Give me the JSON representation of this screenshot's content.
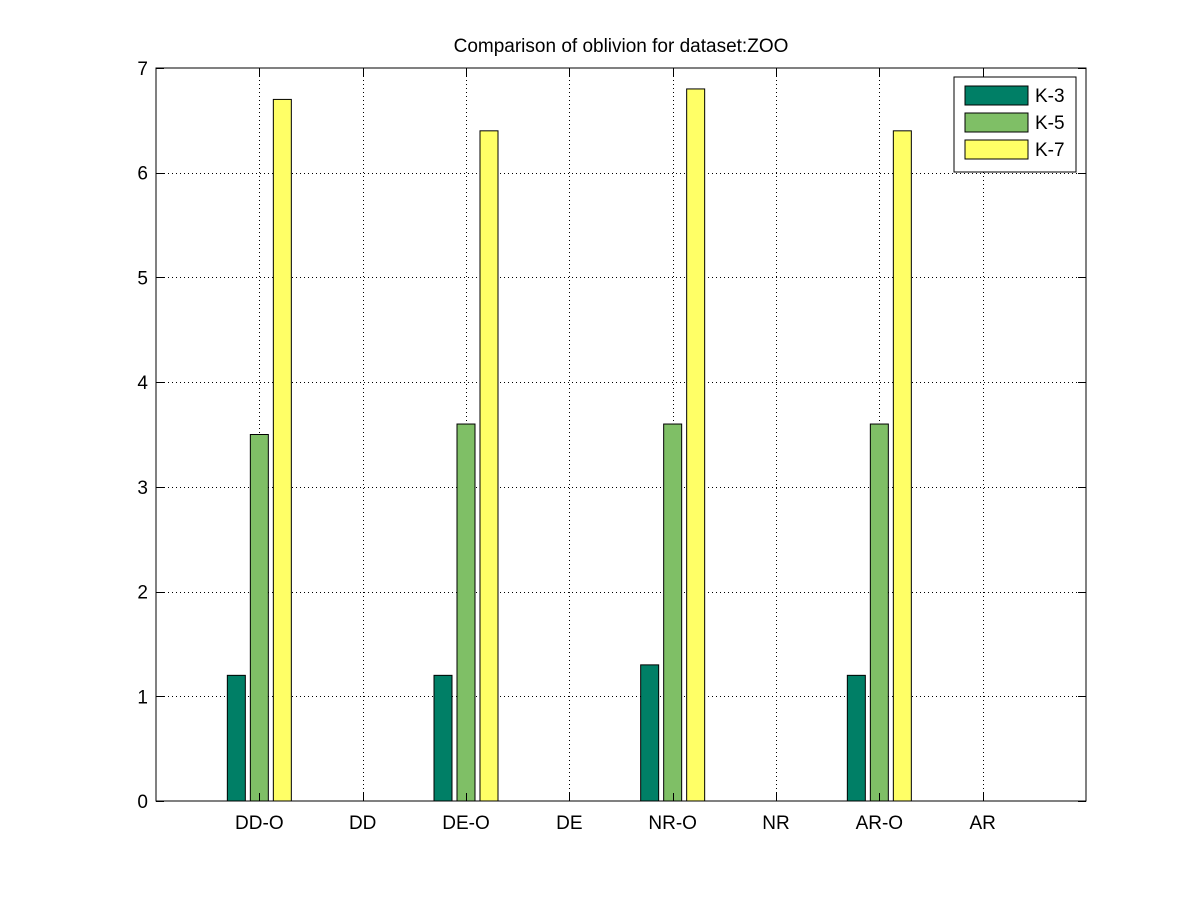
{
  "chart_data": {
    "type": "bar",
    "title": "Comparison of oblivion for dataset:ZOO",
    "xlabel": "",
    "ylabel": "",
    "categories": [
      "DD-O",
      "DD",
      "DE-O",
      "DE",
      "NR-O",
      "NR",
      "AR-O",
      "AR"
    ],
    "ylim": [
      0,
      7
    ],
    "yticks": [
      0,
      1,
      2,
      3,
      4,
      5,
      6,
      7
    ],
    "grid": true,
    "legend_position": "top-right",
    "series": [
      {
        "name": "K-3",
        "color": "#007f66",
        "values": [
          1.2,
          0,
          1.2,
          0,
          1.3,
          0,
          1.2,
          0
        ]
      },
      {
        "name": "K-5",
        "color": "#7fbf66",
        "values": [
          3.5,
          0,
          3.6,
          0,
          3.6,
          0,
          3.6,
          0
        ]
      },
      {
        "name": "K-7",
        "color": "#ffff66",
        "values": [
          6.7,
          0,
          6.4,
          0,
          6.8,
          0,
          6.4,
          0
        ]
      }
    ]
  }
}
